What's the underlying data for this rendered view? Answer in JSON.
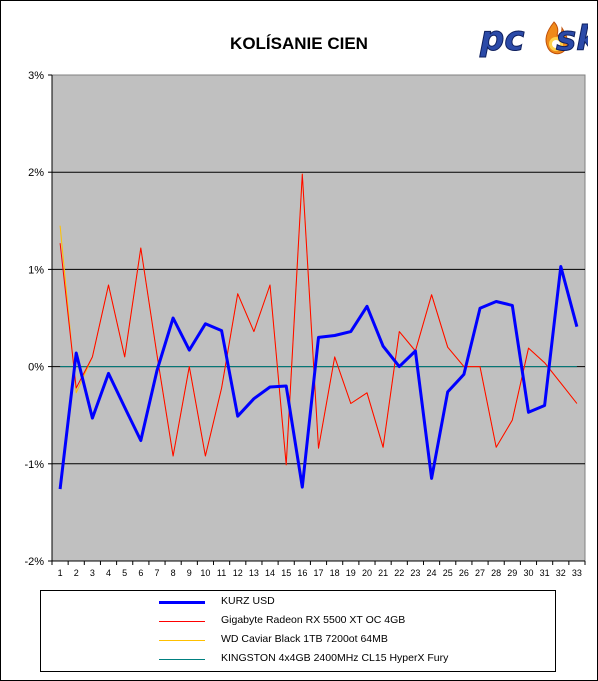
{
  "chart_data": {
    "type": "line",
    "title": "KOLÍSANIE CIEN",
    "xlabel": "",
    "ylabel": "",
    "x": [
      1,
      2,
      3,
      4,
      5,
      6,
      7,
      8,
      9,
      10,
      11,
      12,
      13,
      14,
      15,
      16,
      17,
      18,
      19,
      20,
      21,
      22,
      23,
      24,
      25,
      26,
      27,
      28,
      29,
      30,
      31,
      32,
      33
    ],
    "ylim": [
      -2,
      3
    ],
    "yticks": [
      "-2%",
      "-1%",
      "0%",
      "1%",
      "2%",
      "3%"
    ],
    "grid": true,
    "legend_position": "bottom",
    "plot_background": "#c0c0c0",
    "series": [
      {
        "name": "KURZ USD",
        "color": "#0000ff",
        "width": 3,
        "values": [
          -1.26,
          0.14,
          -0.53,
          -0.07,
          -0.42,
          -0.76,
          -0.04,
          0.5,
          0.17,
          0.44,
          0.37,
          -0.51,
          -0.33,
          -0.21,
          -0.2,
          -1.24,
          0.3,
          0.32,
          0.36,
          0.62,
          0.21,
          0.0,
          0.16,
          -1.15,
          -0.26,
          -0.08,
          0.6,
          0.67,
          0.63,
          -0.47,
          -0.4,
          1.03,
          0.41
        ]
      },
      {
        "name": "Gigabyte Radeon RX 5500 XT OC 4GB",
        "color": "#ff0000",
        "width": 1,
        "values": [
          1.27,
          -0.22,
          0.1,
          0.84,
          0.1,
          1.22,
          0.12,
          -0.92,
          0.0,
          -0.92,
          -0.22,
          0.75,
          0.36,
          0.84,
          -1.01,
          1.98,
          -0.84,
          0.1,
          -0.38,
          -0.27,
          -0.83,
          0.36,
          0.16,
          0.74,
          0.2,
          0.0,
          0.0,
          -0.83,
          -0.55,
          0.19,
          0.04,
          -0.17,
          -0.38
        ]
      },
      {
        "name": "WD Caviar Black 1TB 7200ot 64MB",
        "color": "#ffc000",
        "width": 1,
        "values": [
          1.45,
          -0.27,
          0.1,
          0.84,
          0.1,
          1.22,
          0.12,
          -0.92,
          0.0,
          -0.92,
          -0.22,
          0.75,
          0.36,
          0.84,
          -1.01,
          1.98,
          -0.84,
          0.1,
          -0.38,
          -0.27,
          -0.83,
          0.36,
          0.16,
          0.74,
          0.2,
          0.0,
          0.0,
          -0.83,
          -0.55,
          0.19,
          0.04,
          -0.17,
          -0.38
        ]
      },
      {
        "name": "KINGSTON 4x4GB 2400MHz CL15 HyperX Fury",
        "color": "#008080",
        "width": 1,
        "values": [
          0,
          0,
          0,
          0,
          0,
          0,
          0,
          0,
          0,
          0,
          0,
          0,
          0,
          0,
          0,
          0,
          0,
          0,
          0,
          0,
          0,
          0,
          0,
          0,
          0,
          0,
          0,
          0,
          0,
          0,
          0,
          0,
          0
        ]
      }
    ]
  },
  "logo": {
    "text_left": "pc",
    "text_right": "sk"
  }
}
